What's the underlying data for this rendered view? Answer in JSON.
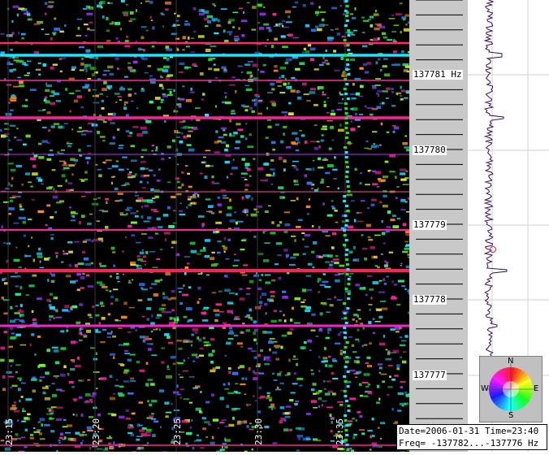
{
  "time_axis": [
    "23:15",
    "23:20",
    "23:25",
    "23:30",
    "23:35"
  ],
  "frequency_axis": [
    "137781 Hz",
    "137780",
    "137779",
    "137778",
    "137777"
  ],
  "compass": {
    "n": "N",
    "e": "E",
    "s": "S",
    "w": "W"
  },
  "info": {
    "line1": "Date=2006-01-31 Time=23:40",
    "line2": "Freq= -137782...-137776 Hz"
  },
  "colors": {
    "background": "#000000",
    "scale_panel": "#c8c8c8",
    "carrier_magenta": "#ff1f9a",
    "carrier_cyan": "#19e6ff",
    "trace": "#3a0f5c",
    "marker": "#e02020"
  }
}
